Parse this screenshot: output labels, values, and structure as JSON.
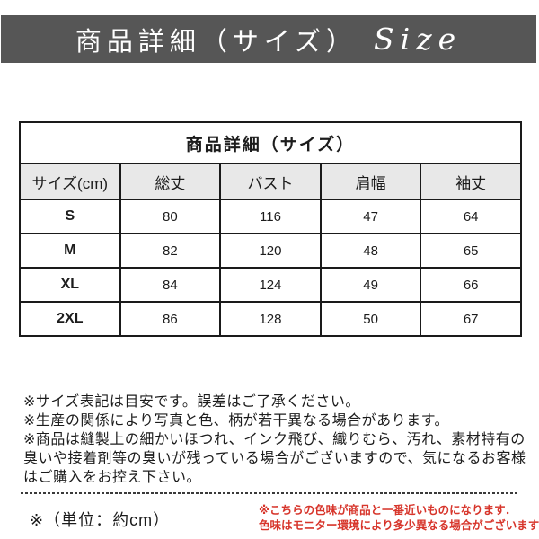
{
  "colors": {
    "title_bar_bg": "#565656",
    "table_header_bg": "#e8e8e8",
    "table_border": "#1a1a1a",
    "red_note_text": "#d7352b"
  },
  "title_bar": {
    "title_jp": "商品詳細（サイズ）",
    "title_en": "Size"
  },
  "size_table": {
    "title": "商品詳細（サイズ）",
    "headers": [
      "サイズ(cm)",
      "総丈",
      "バスト",
      "肩幅",
      "袖丈"
    ],
    "rows": [
      [
        "S",
        "80",
        "116",
        "47",
        "64"
      ],
      [
        "M",
        "82",
        "120",
        "48",
        "65"
      ],
      [
        "XL",
        "84",
        "124",
        "49",
        "66"
      ],
      [
        "2XL",
        "86",
        "128",
        "50",
        "67"
      ]
    ]
  },
  "notes": {
    "lines": [
      "※サイズ表記は目安です。誤差はご了承ください。",
      "※生産の関係により写真と色、柄が若干異なる場合があります。",
      "※商品は縫製上の細かいほつれ、インク飛び、織りむら、汚れ、素材特有の",
      "臭いや接着剤等の臭いが残っている場合がございますので、気になるお客様",
      "はご購入をお控え下さい。"
    ]
  },
  "footer": {
    "unit_label": "※（単位：約cm）",
    "red_notes": [
      "※こちらの色味が商品と一番近いものになります．",
      "色味はモニター環境により多少異なる場合がございます．"
    ]
  }
}
